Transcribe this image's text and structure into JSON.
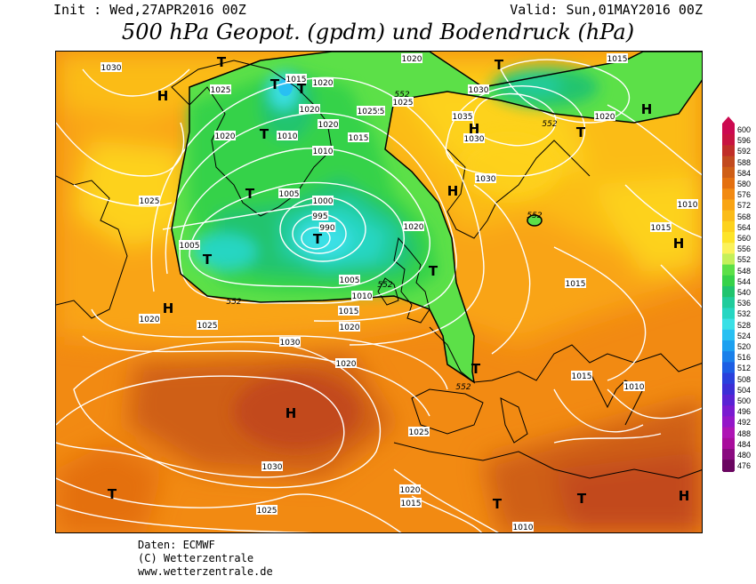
{
  "header": {
    "init": "Init : Wed,27APR2016 00Z",
    "valid": "Valid: Sun,01MAY2016 00Z",
    "title": "500 hPa Geopot. (gpdm) und Bodendruck (hPa)"
  },
  "legend": {
    "levels": [
      "600",
      "596",
      "592",
      "588",
      "584",
      "580",
      "576",
      "572",
      "568",
      "564",
      "560",
      "556",
      "552",
      "548",
      "544",
      "540",
      "536",
      "532",
      "528",
      "524",
      "520",
      "516",
      "512",
      "508",
      "504",
      "500",
      "496",
      "492",
      "488",
      "484",
      "480",
      "476"
    ],
    "colors": [
      "#cc0a50",
      "#c81440",
      "#c02e28",
      "#c24a1e",
      "#cf5e16",
      "#e47010",
      "#f28a12",
      "#f9a414",
      "#fbbc18",
      "#fdd21c",
      "#fde428",
      "#fbf25a",
      "#c4f05a",
      "#5ce048",
      "#36d24a",
      "#20c46e",
      "#20cc9c",
      "#26d6c2",
      "#3ae0e6",
      "#28c0f2",
      "#1ca0f0",
      "#1a80ea",
      "#1c5ee4",
      "#2a40dc",
      "#3c2ed6",
      "#5a22d4",
      "#7a1ad0",
      "#9416c8",
      "#ae14b4",
      "#a80c9c",
      "#8a0a80",
      "#6a0660"
    ]
  },
  "isobar_labels": [
    "1030",
    "1015",
    "1020",
    "1025",
    "1030",
    "1015",
    "1025",
    "1020",
    "1020",
    "1025",
    "1025",
    "1035",
    "1020",
    "1020",
    "1010",
    "1020",
    "1030",
    "1015",
    "1010",
    "1030",
    "1025",
    "1005",
    "1000",
    "995",
    "990",
    "1020",
    "1010",
    "1015",
    "1005",
    "1005",
    "1010",
    "1015",
    "1020",
    "1020",
    "1025",
    "1030",
    "1020",
    "1015",
    "1015",
    "1010",
    "1030",
    "1025",
    "1020",
    "1015",
    "1025",
    "1010"
  ],
  "height_labels": [
    "552",
    "552",
    "552",
    "552",
    "552",
    "552"
  ],
  "pressure_centers": [
    "H",
    "H",
    "H",
    "H",
    "H",
    "H",
    "H",
    "H",
    "T",
    "T",
    "T",
    "T",
    "T",
    "T",
    "T",
    "T",
    "T",
    "T",
    "T",
    "T",
    "T",
    "T"
  ],
  "credits": {
    "line1": "Daten: ECMWF",
    "line2": "(C) Wetterzentrale",
    "line3": "www.wetterzentrale.de"
  }
}
